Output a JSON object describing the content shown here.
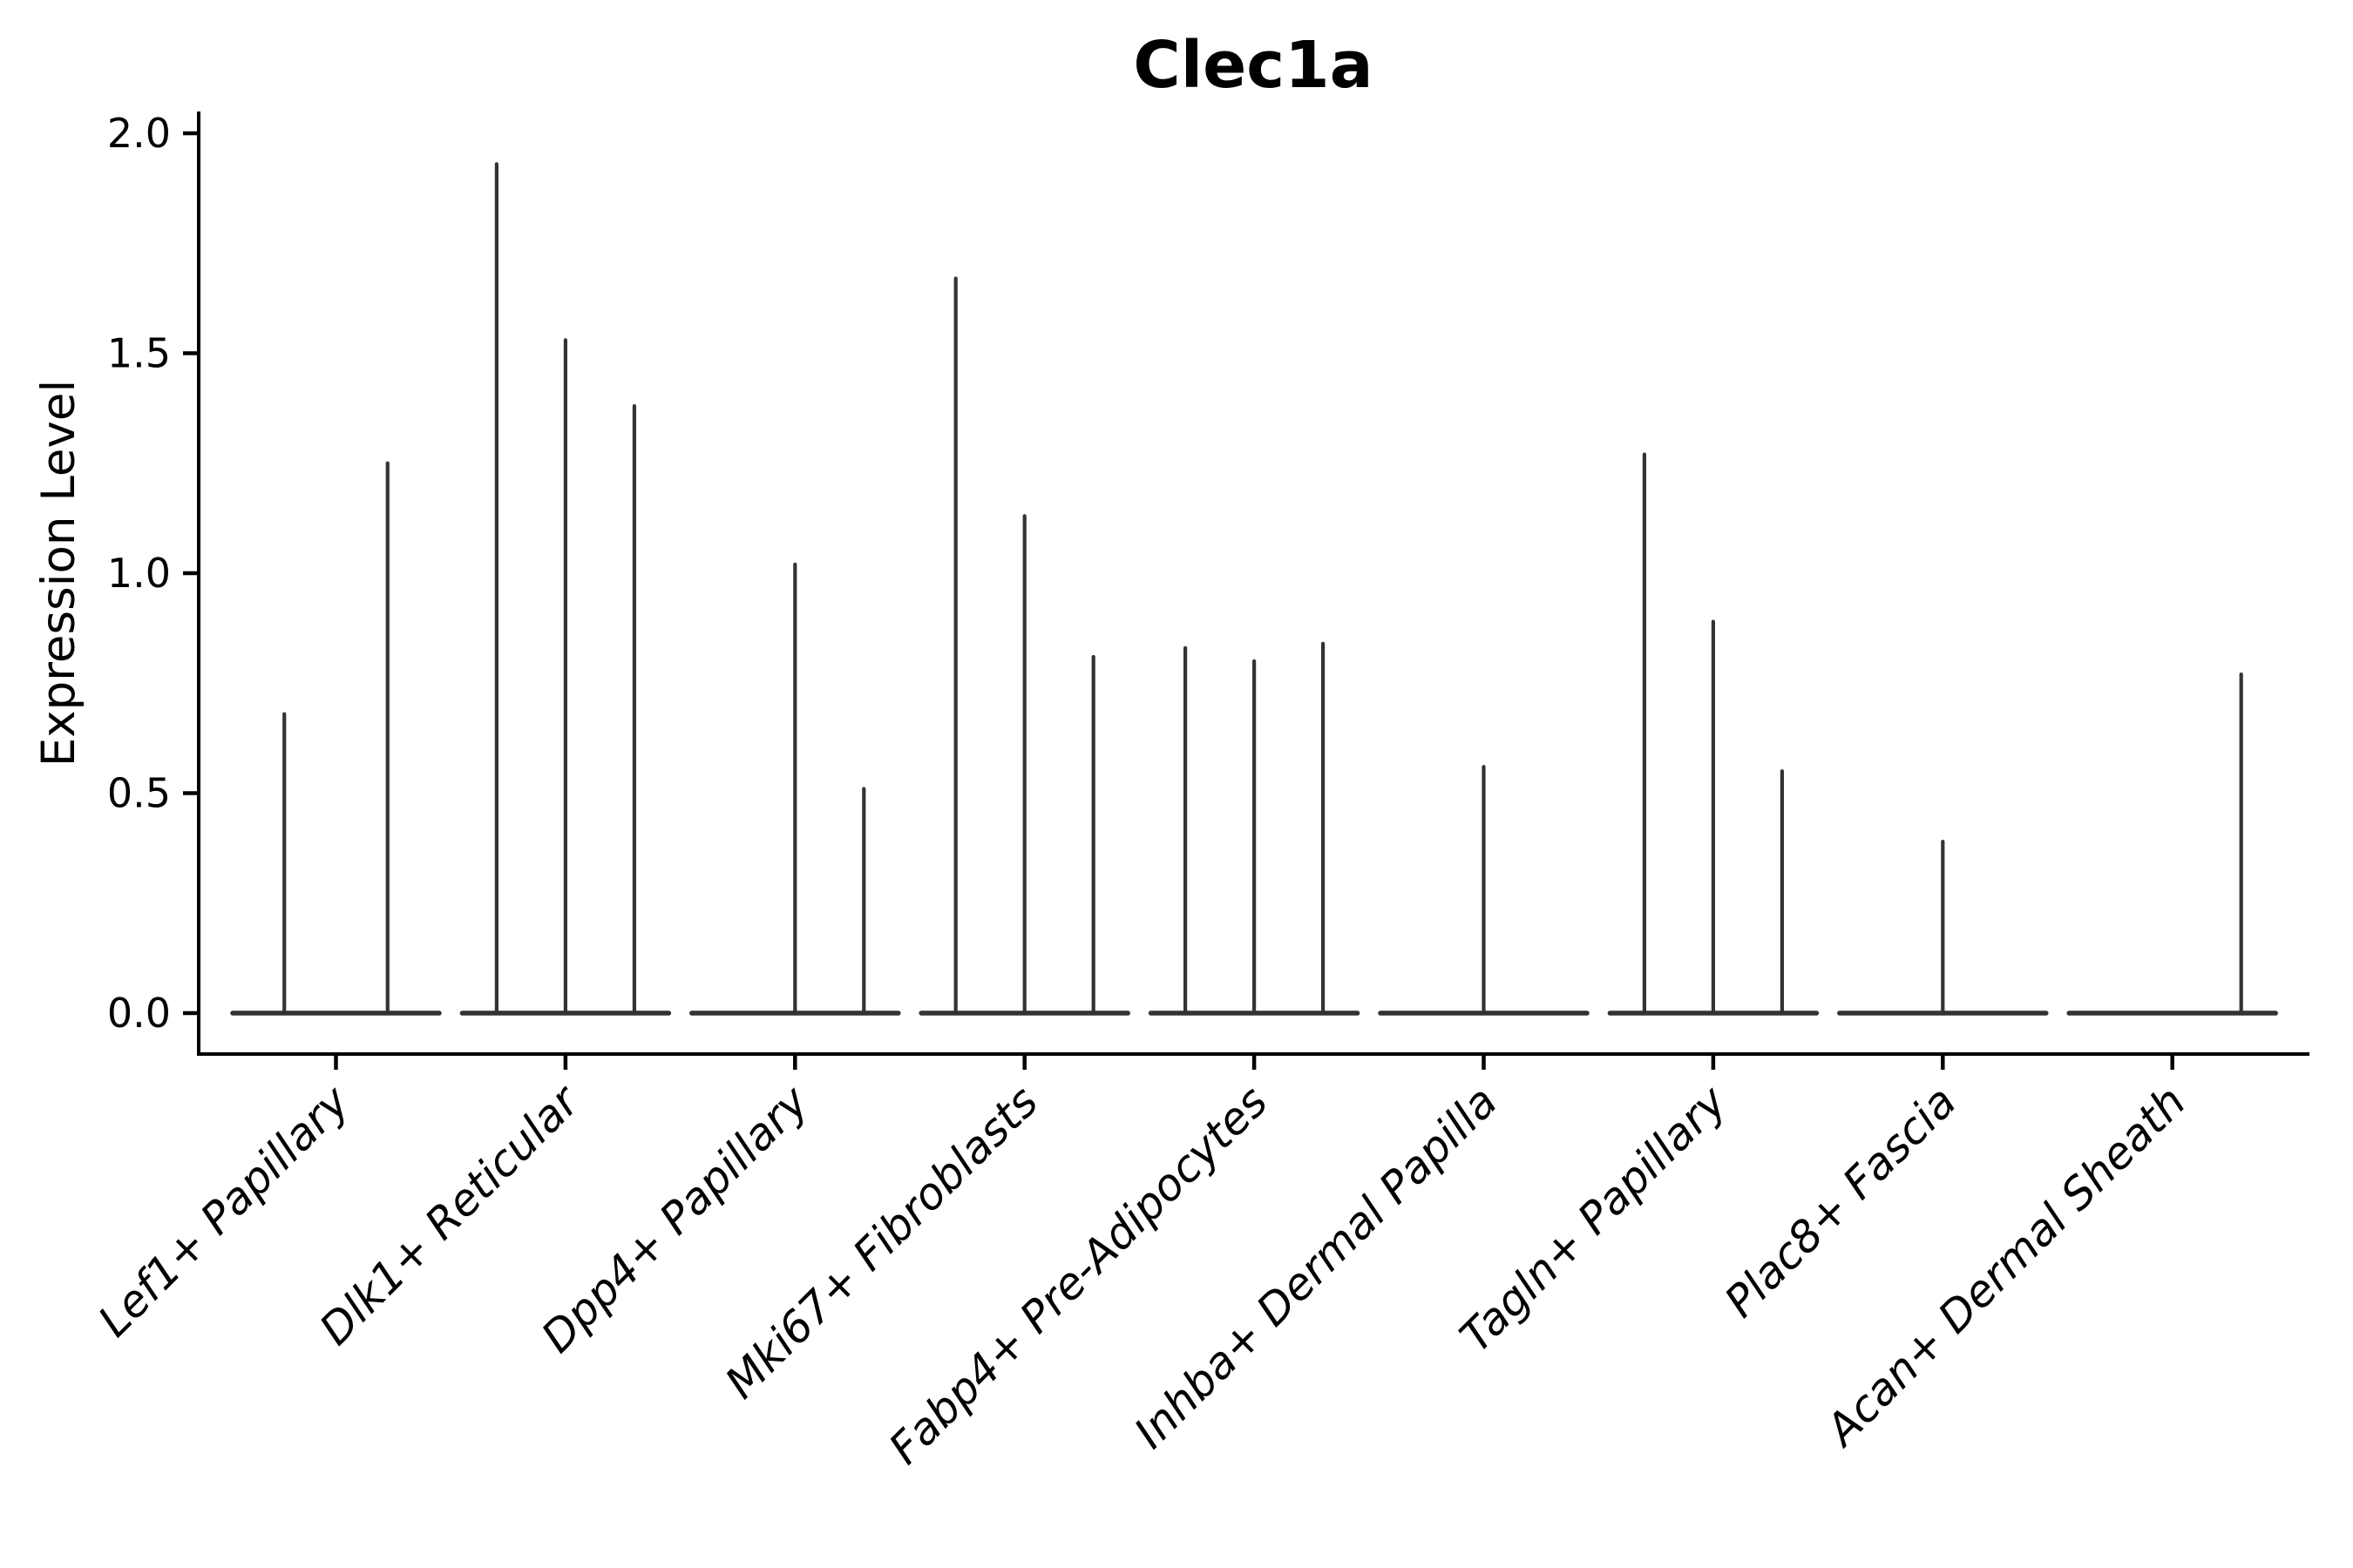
{
  "title": "Clec1a",
  "ylabel": "Expression Level",
  "colors": {
    "violin": "#333333",
    "axis": "#000000",
    "text": "#000000",
    "background": "#ffffff"
  },
  "chart_data": {
    "type": "violin",
    "title": "Clec1a",
    "xlabel": "",
    "ylabel": "Expression Level",
    "ylim": [
      -0.09,
      2.05
    ],
    "yticks": [
      0.0,
      0.5,
      1.0,
      1.5,
      2.0
    ],
    "ytick_labels": [
      "0.0",
      "0.5",
      "1.0",
      "1.5",
      "2.0"
    ],
    "grid": false,
    "legend": "none",
    "note": "Collapsed violins: each category shows flat baseline at 0 with thin density spikes; spike value = max expression level per dodge slot, 0 = flat slot",
    "categories": [
      {
        "label": "Lef1+ Papillary",
        "spikes": [
          0.68,
          1.25
        ]
      },
      {
        "label": "Dlk1+ Reticular",
        "spikes": [
          1.93,
          1.53,
          1.38
        ]
      },
      {
        "label": "Dpp4+ Papillary",
        "spikes": [
          0,
          1.02,
          0.51
        ]
      },
      {
        "label": "Mki67+ Fibroblasts",
        "spikes": [
          1.67,
          1.13,
          0.81
        ]
      },
      {
        "label": "Fabp4+ Pre-Adipocytes",
        "spikes": [
          0.83,
          0.8,
          0.84
        ]
      },
      {
        "label": "Inhba+ Dermal Papilla",
        "spikes": [
          0.56
        ]
      },
      {
        "label": "Tagln+ Papillary",
        "spikes": [
          1.27,
          0.89,
          0.55
        ]
      },
      {
        "label": "Plac8+ Fascia",
        "spikes": [
          0.39
        ]
      },
      {
        "label": "Acan+ Dermal Sheath",
        "spikes": [
          0,
          0,
          0.77
        ]
      }
    ]
  }
}
